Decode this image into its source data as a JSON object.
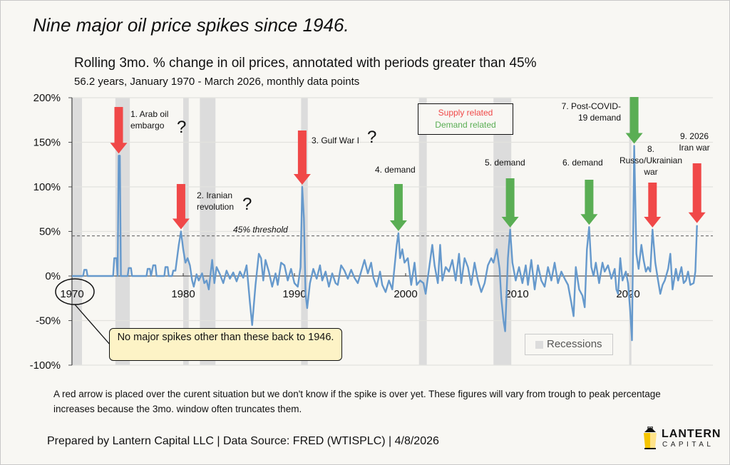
{
  "title": "Nine major oil price spikes since 1946.",
  "subtitle": "Rolling 3mo. % change in oil prices, annotated with periods greater than 45%",
  "subsubtitle": "56.2 years, January 1970 - March 2026, monthly data points",
  "legend": {
    "supply_label": "Supply related",
    "demand_label": "Demand related",
    "supply_color": "#f04848",
    "demand_color": "#5aae54",
    "recessions_label": "Recessions"
  },
  "callout": {
    "text": "No major spikes other than these back to 1946."
  },
  "note": "A red arrow is placed  over the curent situation but we don't know if the spike is over yet. These figures will vary from trough to peak percentage increases because the 3mo. window often truncates them.",
  "footer": "Prepared by Lantern Capital LLC | Data Source: FRED (WTISPLC) | 4/8/2026",
  "logo": {
    "line1": "LANTERN",
    "line2": "CAPITAL"
  },
  "chart_data": {
    "type": "line",
    "title": "Rolling 3mo. % change in oil prices, annotated with periods greater than 45%",
    "xlabel": "",
    "ylabel": "",
    "xlim": [
      1970,
      2026.25
    ],
    "ylim": [
      -100,
      200
    ],
    "x_ticks": [
      1970,
      1980,
      1990,
      2000,
      2010,
      2020
    ],
    "x_tick_labels": [
      "1970",
      "1980",
      "1990",
      "2000",
      "2010",
      "2020"
    ],
    "y_ticks": [
      -100,
      -50,
      0,
      50,
      100,
      150,
      200
    ],
    "y_tick_labels": [
      "-100%",
      "-50%",
      "0%",
      "50%",
      "100%",
      "150%",
      "200%"
    ],
    "grid": true,
    "line_color": "#6699cc",
    "threshold": {
      "value": 45,
      "label": "45% threshold"
    },
    "recessions": [
      [
        1969.9,
        1970.9
      ],
      [
        1973.9,
        1975.2
      ],
      [
        1980.0,
        1980.5
      ],
      [
        1981.5,
        1982.9
      ],
      [
        1990.6,
        1991.2
      ],
      [
        2001.2,
        2001.9
      ],
      [
        2007.9,
        2009.5
      ],
      [
        2020.1,
        2020.3
      ]
    ],
    "series": [
      {
        "name": "Rolling 3mo. % change",
        "points": [
          [
            1970.0,
            0
          ],
          [
            1971.0,
            0
          ],
          [
            1971.1,
            7
          ],
          [
            1971.3,
            7
          ],
          [
            1971.4,
            0
          ],
          [
            1973.7,
            0
          ],
          [
            1973.8,
            20
          ],
          [
            1974.0,
            20
          ],
          [
            1974.1,
            0
          ],
          [
            1974.2,
            135
          ],
          [
            1974.3,
            135
          ],
          [
            1974.4,
            0
          ],
          [
            1975.0,
            0
          ],
          [
            1975.1,
            9
          ],
          [
            1975.3,
            9
          ],
          [
            1975.4,
            0
          ],
          [
            1976.7,
            0
          ],
          [
            1976.8,
            8
          ],
          [
            1977.0,
            8
          ],
          [
            1977.1,
            0
          ],
          [
            1977.3,
            12
          ],
          [
            1977.5,
            12
          ],
          [
            1977.6,
            0
          ],
          [
            1978.3,
            0
          ],
          [
            1978.4,
            10
          ],
          [
            1978.6,
            10
          ],
          [
            1978.7,
            0
          ],
          [
            1979.0,
            0
          ],
          [
            1979.1,
            6
          ],
          [
            1979.3,
            6
          ],
          [
            1979.6,
            35
          ],
          [
            1979.8,
            50
          ],
          [
            1980.0,
            30
          ],
          [
            1980.2,
            15
          ],
          [
            1980.4,
            20
          ],
          [
            1980.6,
            12
          ],
          [
            1980.8,
            -5
          ],
          [
            1980.95,
            -12
          ],
          [
            1981.2,
            2
          ],
          [
            1981.4,
            -5
          ],
          [
            1981.7,
            3
          ],
          [
            1981.9,
            -8
          ],
          [
            1982.1,
            -5
          ],
          [
            1982.3,
            -15
          ],
          [
            1982.6,
            18
          ],
          [
            1982.8,
            -8
          ],
          [
            1983.0,
            10
          ],
          [
            1983.3,
            2
          ],
          [
            1983.6,
            -8
          ],
          [
            1983.9,
            6
          ],
          [
            1984.2,
            -3
          ],
          [
            1984.5,
            4
          ],
          [
            1984.8,
            -6
          ],
          [
            1985.1,
            5
          ],
          [
            1985.4,
            -2
          ],
          [
            1985.7,
            12
          ],
          [
            1986.0,
            -30
          ],
          [
            1986.2,
            -55
          ],
          [
            1986.5,
            -10
          ],
          [
            1986.8,
            25
          ],
          [
            1987.0,
            20
          ],
          [
            1987.2,
            -5
          ],
          [
            1987.4,
            18
          ],
          [
            1987.7,
            5
          ],
          [
            1988.0,
            -12
          ],
          [
            1988.3,
            3
          ],
          [
            1988.5,
            -10
          ],
          [
            1988.8,
            15
          ],
          [
            1989.1,
            12
          ],
          [
            1989.4,
            -5
          ],
          [
            1989.7,
            8
          ],
          [
            1990.0,
            -8
          ],
          [
            1990.3,
            -12
          ],
          [
            1990.55,
            10
          ],
          [
            1990.7,
            100
          ],
          [
            1990.85,
            65
          ],
          [
            1991.0,
            -20
          ],
          [
            1991.15,
            -36
          ],
          [
            1991.4,
            -8
          ],
          [
            1991.7,
            8
          ],
          [
            1992.0,
            -3
          ],
          [
            1992.3,
            12
          ],
          [
            1992.5,
            -5
          ],
          [
            1992.8,
            5
          ],
          [
            1993.1,
            -12
          ],
          [
            1993.4,
            3
          ],
          [
            1993.7,
            -8
          ],
          [
            1993.9,
            -10
          ],
          [
            1994.2,
            12
          ],
          [
            1994.5,
            6
          ],
          [
            1994.8,
            -3
          ],
          [
            1995.1,
            7
          ],
          [
            1995.4,
            -2
          ],
          [
            1995.7,
            -8
          ],
          [
            1996.0,
            5
          ],
          [
            1996.3,
            18
          ],
          [
            1996.6,
            3
          ],
          [
            1996.9,
            15
          ],
          [
            1997.1,
            -2
          ],
          [
            1997.4,
            -12
          ],
          [
            1997.7,
            5
          ],
          [
            1997.9,
            -10
          ],
          [
            1998.2,
            -18
          ],
          [
            1998.5,
            -5
          ],
          [
            1998.8,
            -15
          ],
          [
            1999.0,
            10
          ],
          [
            1999.2,
            35
          ],
          [
            1999.35,
            48
          ],
          [
            1999.5,
            20
          ],
          [
            1999.7,
            30
          ],
          [
            1999.9,
            15
          ],
          [
            2000.2,
            20
          ],
          [
            2000.5,
            -10
          ],
          [
            2000.8,
            15
          ],
          [
            2001.0,
            -10
          ],
          [
            2001.3,
            -5
          ],
          [
            2001.6,
            -8
          ],
          [
            2001.8,
            -20
          ],
          [
            2002.1,
            8
          ],
          [
            2002.4,
            35
          ],
          [
            2002.6,
            12
          ],
          [
            2002.9,
            -8
          ],
          [
            2003.1,
            35
          ],
          [
            2003.3,
            -5
          ],
          [
            2003.6,
            10
          ],
          [
            2003.9,
            5
          ],
          [
            2004.2,
            18
          ],
          [
            2004.5,
            -5
          ],
          [
            2004.8,
            25
          ],
          [
            2005.0,
            -8
          ],
          [
            2005.3,
            20
          ],
          [
            2005.6,
            10
          ],
          [
            2005.9,
            -10
          ],
          [
            2006.2,
            15
          ],
          [
            2006.5,
            -5
          ],
          [
            2006.8,
            -18
          ],
          [
            2007.1,
            -8
          ],
          [
            2007.4,
            12
          ],
          [
            2007.7,
            20
          ],
          [
            2007.9,
            15
          ],
          [
            2008.2,
            30
          ],
          [
            2008.45,
            8
          ],
          [
            2008.6,
            -25
          ],
          [
            2008.8,
            -50
          ],
          [
            2008.95,
            -62
          ],
          [
            2009.2,
            20
          ],
          [
            2009.4,
            52
          ],
          [
            2009.6,
            15
          ],
          [
            2009.9,
            -5
          ],
          [
            2010.2,
            10
          ],
          [
            2010.5,
            -8
          ],
          [
            2010.8,
            12
          ],
          [
            2011.0,
            -10
          ],
          [
            2011.3,
            18
          ],
          [
            2011.6,
            -15
          ],
          [
            2011.9,
            12
          ],
          [
            2012.2,
            -5
          ],
          [
            2012.5,
            -12
          ],
          [
            2012.8,
            10
          ],
          [
            2013.1,
            -5
          ],
          [
            2013.4,
            15
          ],
          [
            2013.7,
            -8
          ],
          [
            2014.0,
            5
          ],
          [
            2014.3,
            -3
          ],
          [
            2014.6,
            -10
          ],
          [
            2014.9,
            -30
          ],
          [
            2015.1,
            -45
          ],
          [
            2015.3,
            10
          ],
          [
            2015.6,
            -15
          ],
          [
            2015.9,
            -22
          ],
          [
            2016.1,
            -35
          ],
          [
            2016.3,
            30
          ],
          [
            2016.5,
            55
          ],
          [
            2016.7,
            10
          ],
          [
            2016.9,
            0
          ],
          [
            2017.1,
            15
          ],
          [
            2017.4,
            -8
          ],
          [
            2017.7,
            15
          ],
          [
            2017.9,
            5
          ],
          [
            2018.2,
            12
          ],
          [
            2018.5,
            -3
          ],
          [
            2018.8,
            8
          ],
          [
            2018.95,
            -15
          ],
          [
            2019.1,
            -20
          ],
          [
            2019.3,
            20
          ],
          [
            2019.5,
            -5
          ],
          [
            2019.8,
            5
          ],
          [
            2020.0,
            -8
          ],
          [
            2020.2,
            -40
          ],
          [
            2020.35,
            -72
          ],
          [
            2020.55,
            146
          ],
          [
            2020.75,
            25
          ],
          [
            2020.95,
            8
          ],
          [
            2021.2,
            35
          ],
          [
            2021.4,
            18
          ],
          [
            2021.6,
            5
          ],
          [
            2021.8,
            10
          ],
          [
            2022.0,
            5
          ],
          [
            2022.2,
            52
          ],
          [
            2022.45,
            15
          ],
          [
            2022.7,
            -5
          ],
          [
            2022.9,
            -20
          ],
          [
            2023.1,
            -10
          ],
          [
            2023.3,
            -5
          ],
          [
            2023.6,
            8
          ],
          [
            2023.8,
            25
          ],
          [
            2024.0,
            -15
          ],
          [
            2024.3,
            8
          ],
          [
            2024.5,
            -5
          ],
          [
            2024.8,
            10
          ],
          [
            2025.0,
            -8
          ],
          [
            2025.2,
            -5
          ],
          [
            2025.4,
            5
          ],
          [
            2025.6,
            -10
          ],
          [
            2025.9,
            -8
          ],
          [
            2026.05,
            5
          ],
          [
            2026.2,
            57
          ]
        ]
      }
    ],
    "annotations": [
      {
        "label_lines": [
          "1. Arab oil",
          "embargo"
        ],
        "x": 1974.2,
        "value": 135,
        "kind": "supply",
        "question": true
      },
      {
        "label_lines": [
          "2. Iranian",
          "revolution"
        ],
        "x": 1979.8,
        "value": 50,
        "kind": "supply",
        "question": true
      },
      {
        "label_lines": [
          "3. Gulf War I"
        ],
        "x": 1990.7,
        "value": 100,
        "kind": "supply",
        "question": true
      },
      {
        "label_lines": [
          "4. demand"
        ],
        "x": 1999.35,
        "value": 48,
        "kind": "demand",
        "question": false
      },
      {
        "label_lines": [
          "5. demand"
        ],
        "x": 2009.4,
        "value": 52,
        "kind": "demand",
        "question": false
      },
      {
        "label_lines": [
          "6. demand"
        ],
        "x": 2016.5,
        "value": 55,
        "kind": "demand",
        "question": false
      },
      {
        "label_lines": [
          "7. Post-COVID-",
          "19 demand"
        ],
        "x": 2020.55,
        "value": 146,
        "kind": "demand",
        "question": false
      },
      {
        "label_lines": [
          "8.",
          "Russo/Ukrainian",
          "war"
        ],
        "x": 2022.2,
        "value": 52,
        "kind": "supply",
        "question": false
      },
      {
        "label_lines": [
          "9. 2026",
          "Iran war"
        ],
        "x": 2026.2,
        "value": 57,
        "kind": "supply",
        "question": false
      }
    ],
    "question_mark": "?",
    "circled_label": "1970"
  }
}
